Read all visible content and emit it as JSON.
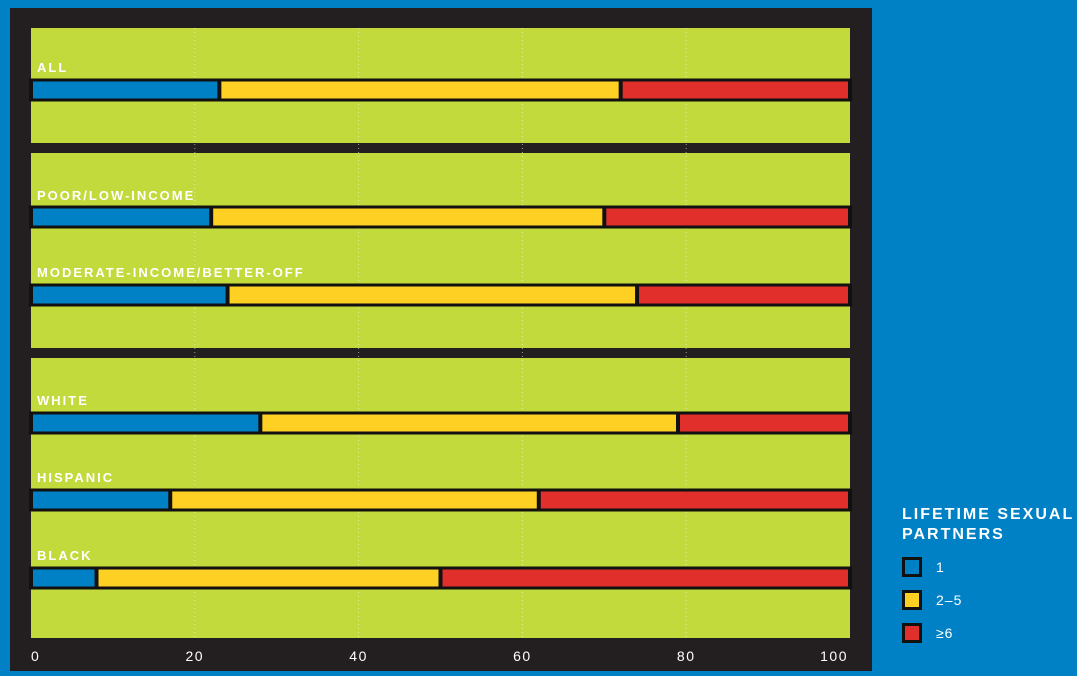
{
  "colors": {
    "background": "#0081c6",
    "frame": "#231f20",
    "panel": "#c3da3c",
    "segment_1": "#0081c6",
    "segment_2_5": "#fdd023",
    "segment_6plus": "#e1302c"
  },
  "legend": {
    "title": "LIFETIME SEXUAL PARTNERS",
    "items": [
      {
        "label": "1",
        "color": "#0081c6"
      },
      {
        "label": "2–5",
        "color": "#fdd023"
      },
      {
        "label": "≥6",
        "color": "#e1302c"
      }
    ]
  },
  "chart_data": {
    "type": "bar",
    "stacked": true,
    "orientation": "horizontal",
    "categories": [
      "ALL",
      "POOR/LOW-INCOME",
      "MODERATE-INCOME/BETTER-OFF",
      "WHITE",
      "HISPANIC",
      "BLACK"
    ],
    "series": [
      {
        "name": "1",
        "values": [
          23,
          22,
          24,
          28,
          17,
          8
        ]
      },
      {
        "name": "2–5",
        "values": [
          49,
          48,
          50,
          51,
          45,
          42
        ]
      },
      {
        "name": "≥6",
        "values": [
          28,
          30,
          26,
          21,
          38,
          50
        ]
      }
    ],
    "xlim": [
      0,
      100
    ],
    "xticks": [
      "0",
      "20",
      "40",
      "60",
      "80",
      "100"
    ],
    "grid": "vertical dotted",
    "legend_position": "right"
  }
}
